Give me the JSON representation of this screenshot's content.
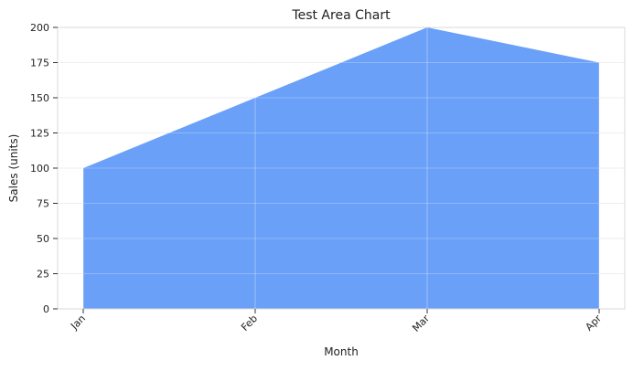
{
  "chart_data": {
    "type": "area",
    "title": "Test Area Chart",
    "xlabel": "Month",
    "ylabel": "Sales (units)",
    "categories": [
      "Jan",
      "Feb",
      "Mar",
      "Apr"
    ],
    "series": [
      {
        "values": [
          100,
          150,
          200,
          175
        ]
      }
    ],
    "ylim": [
      0,
      200
    ],
    "yticks": [
      0,
      25,
      50,
      75,
      100,
      125,
      150,
      175,
      200
    ],
    "grid": true,
    "legend": "none",
    "colors": {
      "fill": "#6aa0f8",
      "grid": "#e8e8e8",
      "axis": "#d8d8d8"
    }
  }
}
